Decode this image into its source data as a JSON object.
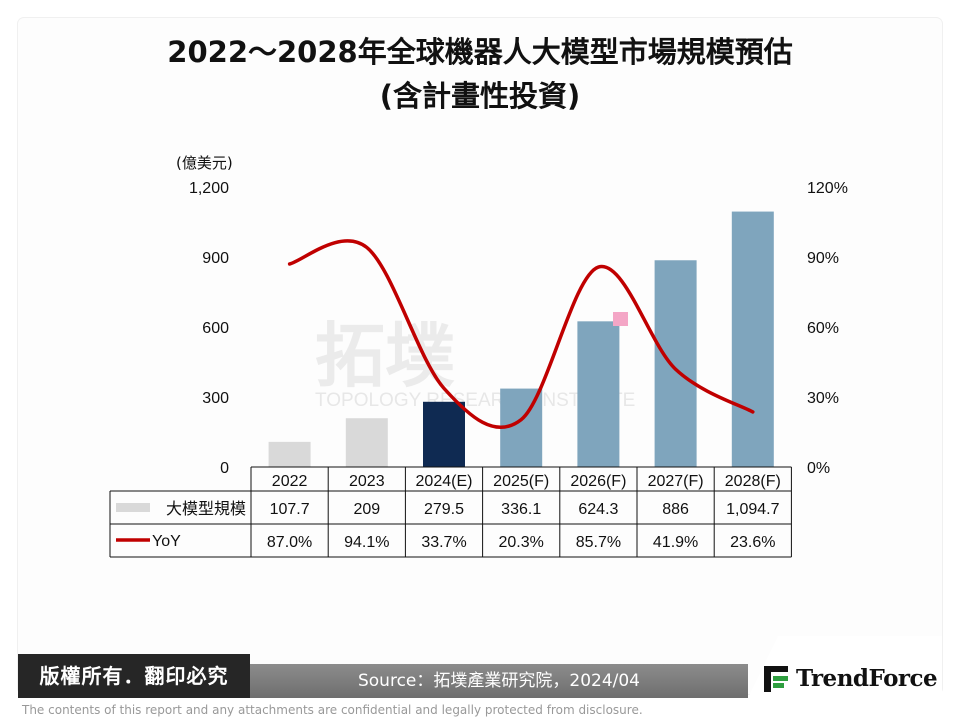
{
  "title_line1": "2022～2028年全球機器人大模型市場規模預估",
  "title_line2": "(含計畫性投資)",
  "unit_label": "(億美元)",
  "chart_data": {
    "type": "bar",
    "categories": [
      "2022",
      "2023",
      "2024(E)",
      "2025(F)",
      "2026(F)",
      "2027(F)",
      "2028(F)"
    ],
    "series": [
      {
        "name": "大模型規模",
        "type": "bar",
        "axis": "left",
        "values": [
          107.7,
          209,
          279.5,
          336.1,
          624.3,
          886,
          1094.7
        ],
        "value_labels": [
          "107.7",
          "209",
          "279.5",
          "336.1",
          "624.3",
          "886",
          "1,094.7"
        ],
        "colors": [
          "#d9d9d9",
          "#d9d9d9",
          "#0f2a52",
          "#7fa5bd",
          "#7fa5bd",
          "#7fa5bd",
          "#7fa5bd"
        ]
      },
      {
        "name": "YoY",
        "type": "line",
        "axis": "right",
        "color": "#c00000",
        "values": [
          87.0,
          94.1,
          33.7,
          20.3,
          85.7,
          41.9,
          23.6
        ],
        "value_labels": [
          "87.0%",
          "94.1%",
          "33.7%",
          "20.3%",
          "85.7%",
          "41.9%",
          "23.6%"
        ]
      }
    ],
    "y_left": {
      "min": 0,
      "max": 1200,
      "ticks": [
        0,
        300,
        600,
        900,
        1200
      ],
      "tick_labels": [
        "0",
        "300",
        "600",
        "900",
        "1,200"
      ]
    },
    "y_right": {
      "min": 0,
      "max": 120,
      "ticks": [
        0,
        30,
        60,
        90,
        120
      ],
      "tick_labels": [
        "0%",
        "30%",
        "60%",
        "90%",
        "120%"
      ]
    },
    "grid": false,
    "legend": "data-table"
  },
  "footer": {
    "copyright": "版權所有．翻印必究",
    "source": "Source：拓墣產業研究院，2024/04",
    "brand": "TrendForce",
    "disclaimer": "The contents of this report and any attachments are confidential and legally protected from disclosure."
  },
  "watermark": {
    "line1": "拓墣",
    "line2": "TOPOLOGY RESEARCH INSTITUTE"
  },
  "colors": {
    "accent_green": "#2e9e3f",
    "dark": "#262626"
  }
}
